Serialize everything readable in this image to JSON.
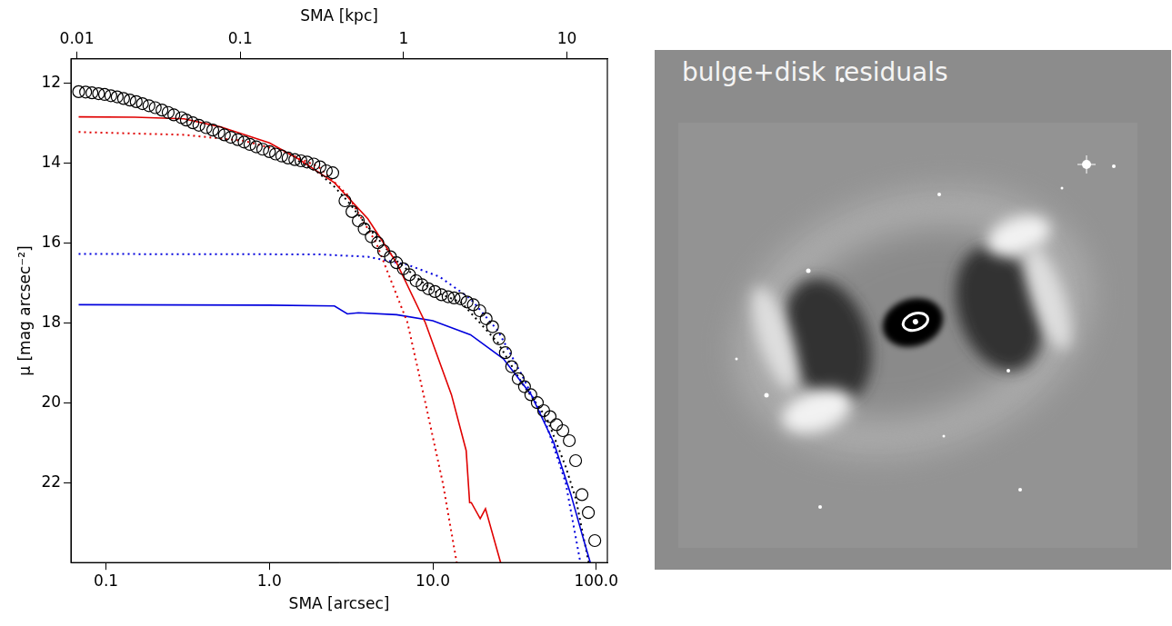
{
  "chart_data": {
    "type": "scatter",
    "x_label": "SMA [arcsec]",
    "x2_label": "SMA [kpc]",
    "y_label": "μ [mag arcsec⁻²]",
    "log": "x",
    "grid": false,
    "xlim": [
      0.061,
      117
    ],
    "xticks": [
      0.1,
      {
        "value": 1,
        "label": "1.0"
      },
      {
        "value": 10,
        "label": "10.0"
      },
      {
        "value": 100,
        "label": "100.0"
      }
    ],
    "x2lim": [
      0.0092,
      17.7
    ],
    "x2ticks": [
      0.01,
      0.1,
      1,
      10
    ],
    "ylim": [
      24.0,
      11.4
    ],
    "yticks": [
      12,
      14,
      16,
      18,
      20,
      22
    ],
    "series": [
      {
        "color": "#000000",
        "marker": "open_circle",
        "x": [
          0.068,
          0.075,
          0.082,
          0.09,
          0.098,
          0.107,
          0.117,
          0.128,
          0.14,
          0.153,
          0.167,
          0.183,
          0.2,
          0.22,
          0.24,
          0.26,
          0.29,
          0.31,
          0.34,
          0.37,
          0.41,
          0.45,
          0.49,
          0.53,
          0.58,
          0.64,
          0.7,
          0.76,
          0.83,
          0.91,
          1.0,
          1.09,
          1.19,
          1.3,
          1.43,
          1.56,
          1.7,
          1.87,
          2.04,
          2.23,
          2.44,
          2.9,
          3.2,
          3.5,
          3.8,
          4.2,
          4.6,
          5.0,
          5.5,
          6.0,
          6.6,
          7.2,
          7.9,
          8.6,
          9.4,
          10.3,
          11.3,
          12.4,
          13.5,
          14.8,
          16.2,
          17.7,
          19.4,
          21.2,
          23.2,
          25.4,
          27.8,
          30.4,
          33.3,
          36.4,
          39.8,
          43.6,
          47.7,
          52.2,
          57.1,
          62.5,
          68.4,
          74.8,
          81.8,
          89.5,
          98
        ],
        "values": [
          12.22,
          12.23,
          12.25,
          12.27,
          12.29,
          12.32,
          12.35,
          12.39,
          12.43,
          12.47,
          12.52,
          12.57,
          12.62,
          12.68,
          12.74,
          12.8,
          12.87,
          12.93,
          13.0,
          13.06,
          13.12,
          13.18,
          13.24,
          13.3,
          13.36,
          13.42,
          13.48,
          13.54,
          13.6,
          13.66,
          13.72,
          13.78,
          13.83,
          13.88,
          13.92,
          13.95,
          13.98,
          14.03,
          14.1,
          14.2,
          14.25,
          14.95,
          15.22,
          15.45,
          15.65,
          15.85,
          16.0,
          16.2,
          16.35,
          16.5,
          16.65,
          16.8,
          16.95,
          17.05,
          17.15,
          17.22,
          17.3,
          17.35,
          17.38,
          17.4,
          17.48,
          17.55,
          17.7,
          17.9,
          18.1,
          18.4,
          18.75,
          19.1,
          19.4,
          19.6,
          19.8,
          20.0,
          20.2,
          20.35,
          20.55,
          20.7,
          20.95,
          21.45,
          22.3,
          22.75,
          23.45
        ]
      },
      {
        "color": "#e00000",
        "line_style": "solid",
        "x": [
          0.068,
          0.15,
          0.3,
          0.5,
          1.0,
          1.5,
          2.5,
          4.0,
          6.0,
          9.0,
          13.0,
          16.0,
          16.8,
          17.2,
          19.5,
          21.0,
          26.0
        ],
        "values": [
          12.85,
          12.86,
          12.9,
          13.1,
          13.5,
          13.9,
          14.5,
          15.4,
          16.5,
          18.0,
          19.8,
          21.2,
          22.5,
          22.5,
          22.9,
          22.65,
          24.0
        ]
      },
      {
        "color": "#e00000",
        "line_style": "dotted",
        "x": [
          0.068,
          0.3,
          0.7,
          1.2,
          2.0,
          3.0,
          4.5,
          7.0,
          9.0,
          11.5,
          14.0
        ],
        "values": [
          13.23,
          13.3,
          13.45,
          13.7,
          14.1,
          14.8,
          16.0,
          18.0,
          20.0,
          22.0,
          24.0
        ]
      },
      {
        "color": "#0000dd",
        "line_style": "dotted",
        "x": [
          0.068,
          2.0,
          4.0,
          7.0,
          11.0,
          17.0,
          25.0,
          35.0,
          50.0,
          65.0,
          80.0
        ],
        "values": [
          16.28,
          16.29,
          16.35,
          16.55,
          16.85,
          17.4,
          18.2,
          19.3,
          20.6,
          22.0,
          24.0
        ]
      },
      {
        "color": "#0000dd",
        "line_style": "solid",
        "x": [
          0.068,
          1.0,
          2.5,
          3.0,
          3.5,
          6.0,
          10.0,
          17.0,
          27.0,
          40.0,
          55.0,
          70.0,
          82.0,
          92.0
        ],
        "values": [
          17.55,
          17.56,
          17.58,
          17.78,
          17.75,
          17.8,
          17.95,
          18.3,
          18.9,
          19.8,
          21.0,
          22.3,
          23.3,
          24.0
        ]
      },
      {
        "color": "#000000",
        "line_style": "dotted",
        "x": [
          1.5,
          2.0,
          2.5,
          3.0,
          4.0,
          6.0,
          10.0,
          15.0,
          25.0,
          35.0,
          50.0,
          65.0,
          75.0,
          82.0,
          90.0
        ],
        "values": [
          13.95,
          14.25,
          14.6,
          14.95,
          15.6,
          16.45,
          17.2,
          17.5,
          18.5,
          19.5,
          20.4,
          21.6,
          22.4,
          23.2,
          24.0
        ]
      }
    ]
  },
  "image": {
    "label": "bulge+disk residuals"
  }
}
